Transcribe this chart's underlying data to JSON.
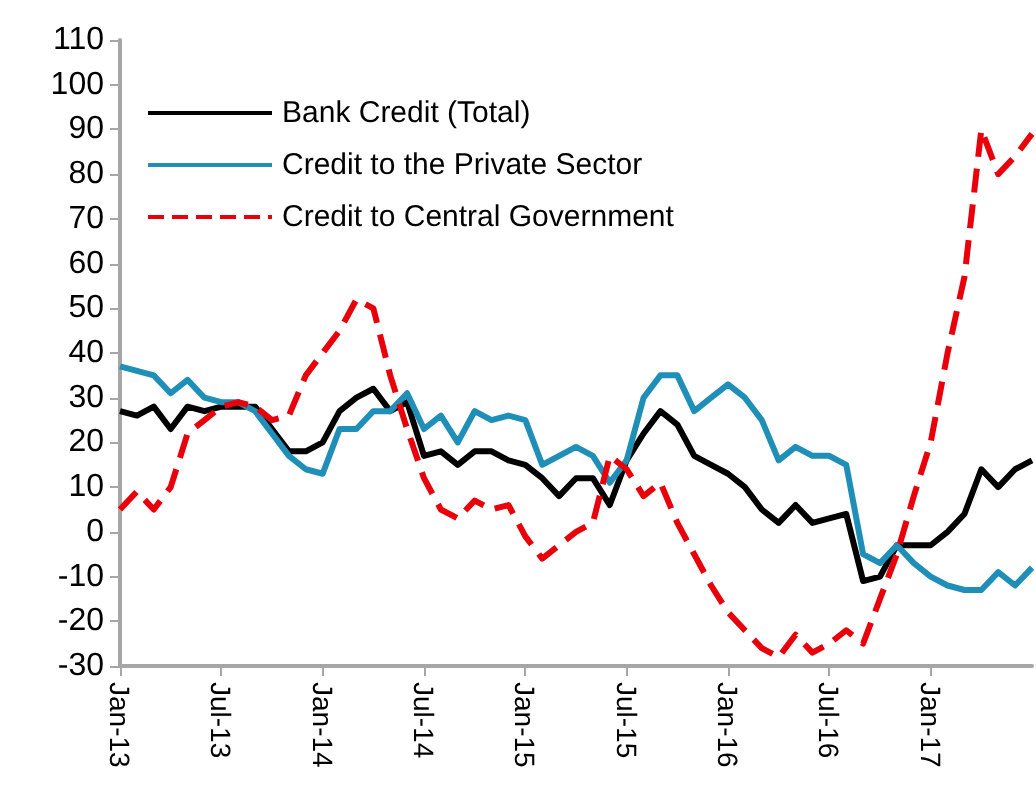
{
  "chart_data": {
    "type": "line",
    "categories": [
      "Jan-13",
      null,
      null,
      null,
      null,
      null,
      "Jul-13",
      null,
      null,
      null,
      null,
      null,
      "Jan-14",
      null,
      null,
      null,
      null,
      null,
      "Jul-14",
      null,
      null,
      null,
      null,
      null,
      "Jan-15",
      null,
      null,
      null,
      null,
      null,
      "Jul-15",
      null,
      null,
      null,
      null,
      null,
      "Jan-16",
      null,
      null,
      null,
      null,
      null,
      "Jul-16",
      null,
      null,
      null,
      null,
      null,
      "Jan-17",
      null,
      null,
      null,
      null,
      null,
      null
    ],
    "series": [
      {
        "name": "Bank Credit (Total)",
        "color": "#000000",
        "line_style": "solid",
        "values": [
          27,
          26,
          28,
          23,
          28,
          27,
          28,
          28,
          28,
          23,
          18,
          18,
          20,
          27,
          30,
          32,
          27,
          29,
          17,
          18,
          15,
          18,
          18,
          16,
          15,
          12,
          8,
          12,
          12,
          6,
          16,
          22,
          27,
          24,
          17,
          15,
          13,
          10,
          5,
          2,
          6,
          2,
          3,
          4,
          -11,
          -10,
          -3,
          -3,
          -3,
          0,
          4,
          14,
          10,
          14,
          16
        ]
      },
      {
        "name": "Credit to the Private Sector",
        "color": "#1f8fb8",
        "line_style": "solid",
        "values": [
          37,
          36,
          35,
          31,
          34,
          30,
          29,
          29,
          27,
          22,
          17,
          14,
          13,
          23,
          23,
          27,
          27,
          31,
          23,
          26,
          20,
          27,
          25,
          26,
          25,
          15,
          17,
          19,
          17,
          11,
          16,
          30,
          35,
          35,
          27,
          30,
          33,
          30,
          25,
          16,
          19,
          17,
          17,
          15,
          -5,
          -7,
          -3,
          -7,
          -10,
          -12,
          -13,
          -13,
          -9,
          -12,
          -8
        ]
      },
      {
        "name": "Credit to Central Government",
        "color": "#e8000b",
        "line_style": "dashed",
        "values": [
          5,
          9,
          5,
          10,
          22,
          25,
          28,
          29,
          28,
          25,
          26,
          35,
          40,
          45,
          52,
          50,
          35,
          23,
          12,
          5,
          3,
          7,
          5,
          6,
          -1,
          -6,
          -3,
          0,
          2,
          17,
          14,
          8,
          11,
          2,
          -5,
          -12,
          -18,
          -22,
          -26,
          -28,
          -23,
          -27,
          -25,
          -22,
          -25,
          -15,
          -5,
          8,
          20,
          40,
          57,
          90,
          80,
          84,
          89
        ]
      }
    ],
    "ylim": [
      -30,
      110
    ],
    "yticks": [
      -30,
      -20,
      -10,
      0,
      10,
      20,
      30,
      40,
      50,
      60,
      70,
      80,
      90,
      100,
      110
    ],
    "grid": false,
    "legend": "top left",
    "marker": "none"
  }
}
